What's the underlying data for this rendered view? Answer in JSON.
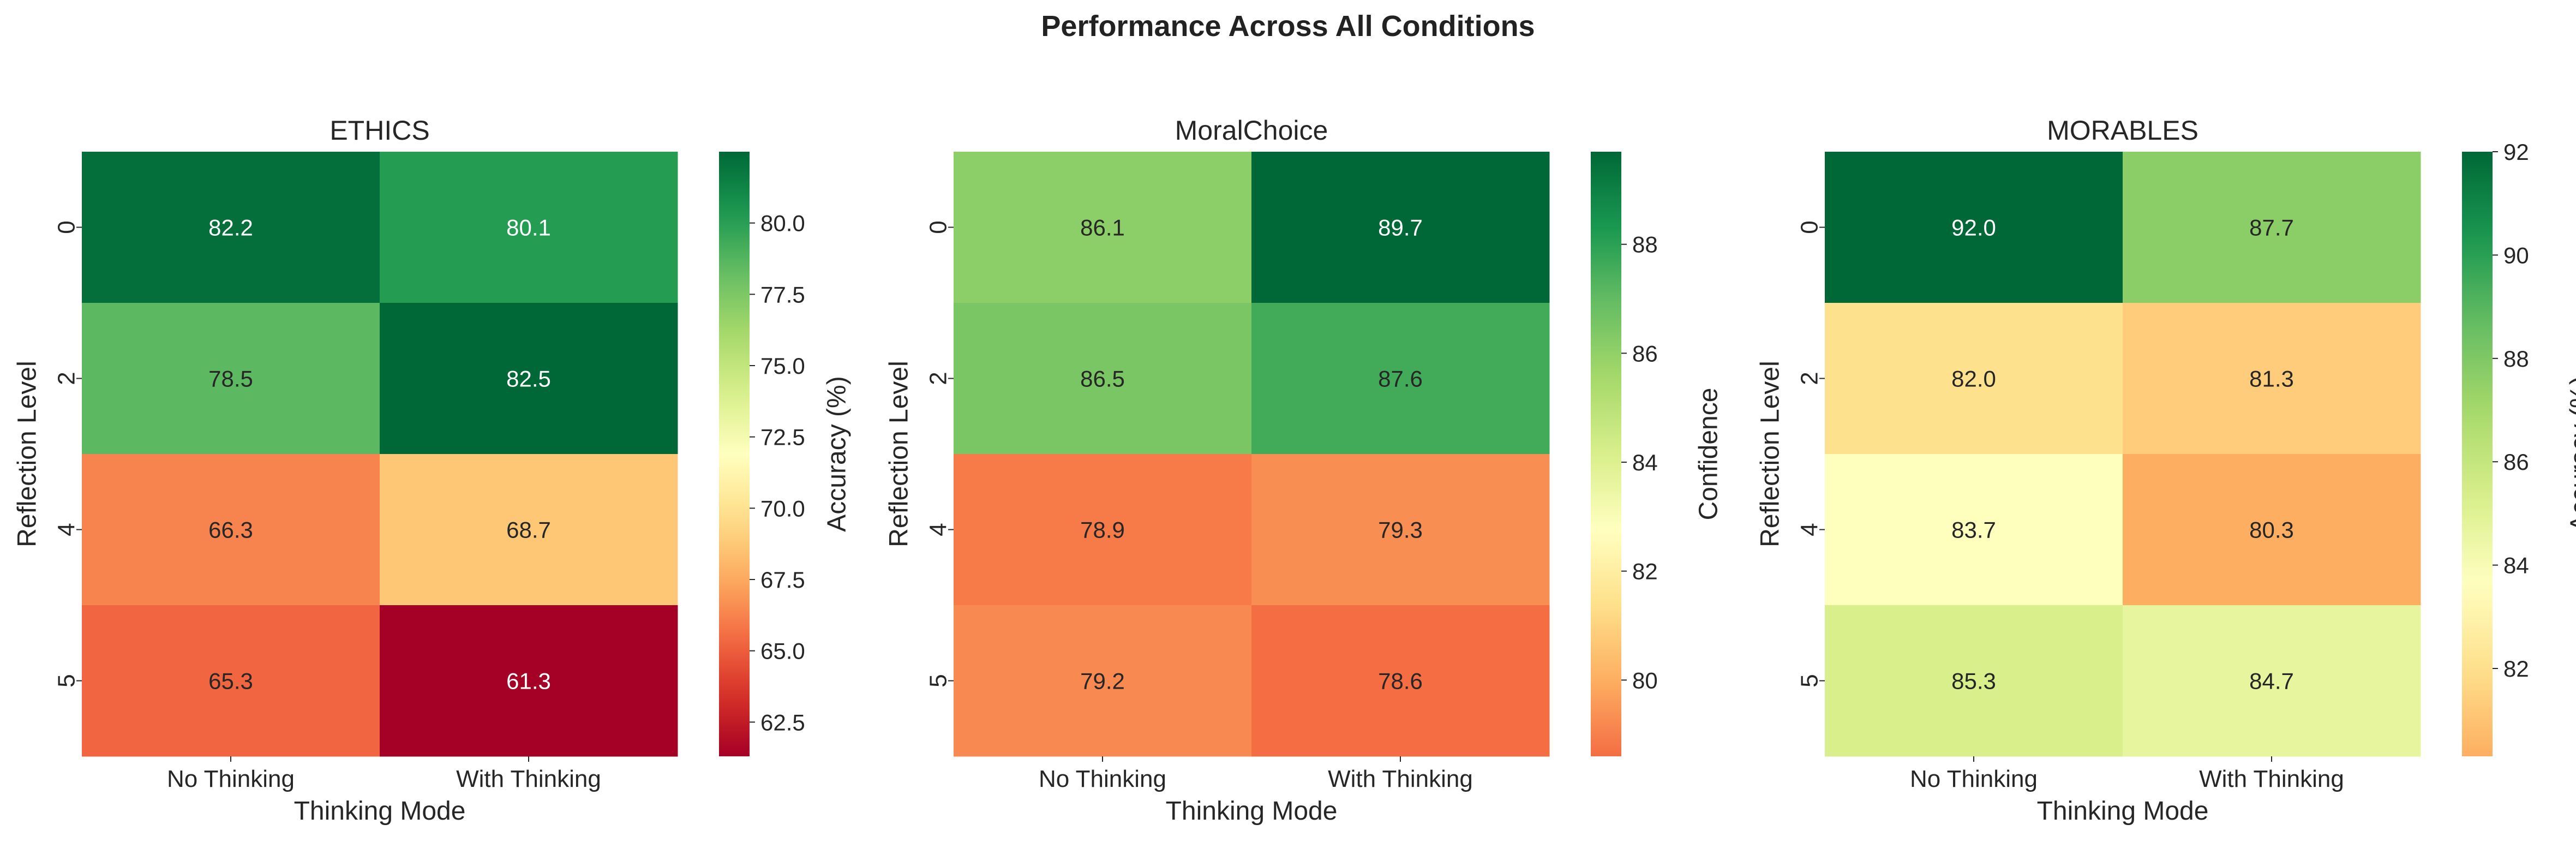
{
  "figure": {
    "title": "Performance Across All Conditions"
  },
  "chart_data": [
    {
      "type": "heatmap",
      "title": "ETHICS",
      "xlabel": "Thinking Mode",
      "ylabel": "Reflection Level",
      "x_categories": [
        "No Thinking",
        "With Thinking"
      ],
      "y_categories": [
        "0",
        "2",
        "4",
        "5"
      ],
      "values": [
        [
          82.2,
          80.1
        ],
        [
          78.5,
          82.5
        ],
        [
          66.3,
          68.7
        ],
        [
          65.3,
          61.3
        ]
      ],
      "value_labels": [
        [
          "82.2",
          "80.1"
        ],
        [
          "78.5",
          "82.5"
        ],
        [
          "66.3",
          "68.7"
        ],
        [
          "65.3",
          "61.3"
        ]
      ],
      "colorbar": {
        "label": "Accuracy (%)",
        "vmin": 61.3,
        "vmax": 82.5,
        "ticks": [
          62.5,
          65.0,
          67.5,
          70.0,
          72.5,
          75.0,
          77.5,
          80.0
        ],
        "tick_labels": [
          "62.5",
          "65.0",
          "67.5",
          "70.0",
          "72.5",
          "75.0",
          "77.5",
          "80.0"
        ]
      },
      "colormap": "RdYlGn"
    },
    {
      "type": "heatmap",
      "title": "MoralChoice",
      "xlabel": "Thinking Mode",
      "ylabel": "Reflection Level",
      "x_categories": [
        "No Thinking",
        "With Thinking"
      ],
      "y_categories": [
        "0",
        "2",
        "4",
        "5"
      ],
      "values": [
        [
          86.1,
          89.7
        ],
        [
          86.5,
          87.6
        ],
        [
          78.9,
          79.3
        ],
        [
          79.2,
          78.6
        ]
      ],
      "value_labels": [
        [
          "86.1",
          "89.7"
        ],
        [
          "86.5",
          "87.6"
        ],
        [
          "78.9",
          "79.3"
        ],
        [
          "79.2",
          "78.6"
        ]
      ],
      "colorbar": {
        "label": "Confidence",
        "vmin": 78.6,
        "vmax": 89.7,
        "ticks": [
          80,
          82,
          84,
          86,
          88
        ],
        "tick_labels": [
          "80",
          "82",
          "84",
          "86",
          "88"
        ],
        "colormap_range": [
          0.2,
          1.0
        ]
      },
      "colormap": "RdYlGn"
    },
    {
      "type": "heatmap",
      "title": "MORABLES",
      "xlabel": "Thinking Mode",
      "ylabel": "Reflection Level",
      "x_categories": [
        "No Thinking",
        "With Thinking"
      ],
      "y_categories": [
        "0",
        "2",
        "4",
        "5"
      ],
      "values": [
        [
          92.0,
          87.7
        ],
        [
          82.0,
          81.3
        ],
        [
          83.7,
          80.3
        ],
        [
          85.3,
          84.7
        ]
      ],
      "value_labels": [
        [
          "92.0",
          "87.7"
        ],
        [
          "82.0",
          "81.3"
        ],
        [
          "83.7",
          "80.3"
        ],
        [
          "85.3",
          "84.7"
        ]
      ],
      "colorbar": {
        "label": "Accuracy (%)",
        "vmin": 80.3,
        "vmax": 92.0,
        "ticks": [
          82,
          84,
          86,
          88,
          90,
          92
        ],
        "tick_labels": [
          "82",
          "84",
          "86",
          "88",
          "90",
          "92"
        ],
        "colormap_range": [
          0.3,
          1.0
        ]
      },
      "colormap": "RdYlGn"
    }
  ]
}
